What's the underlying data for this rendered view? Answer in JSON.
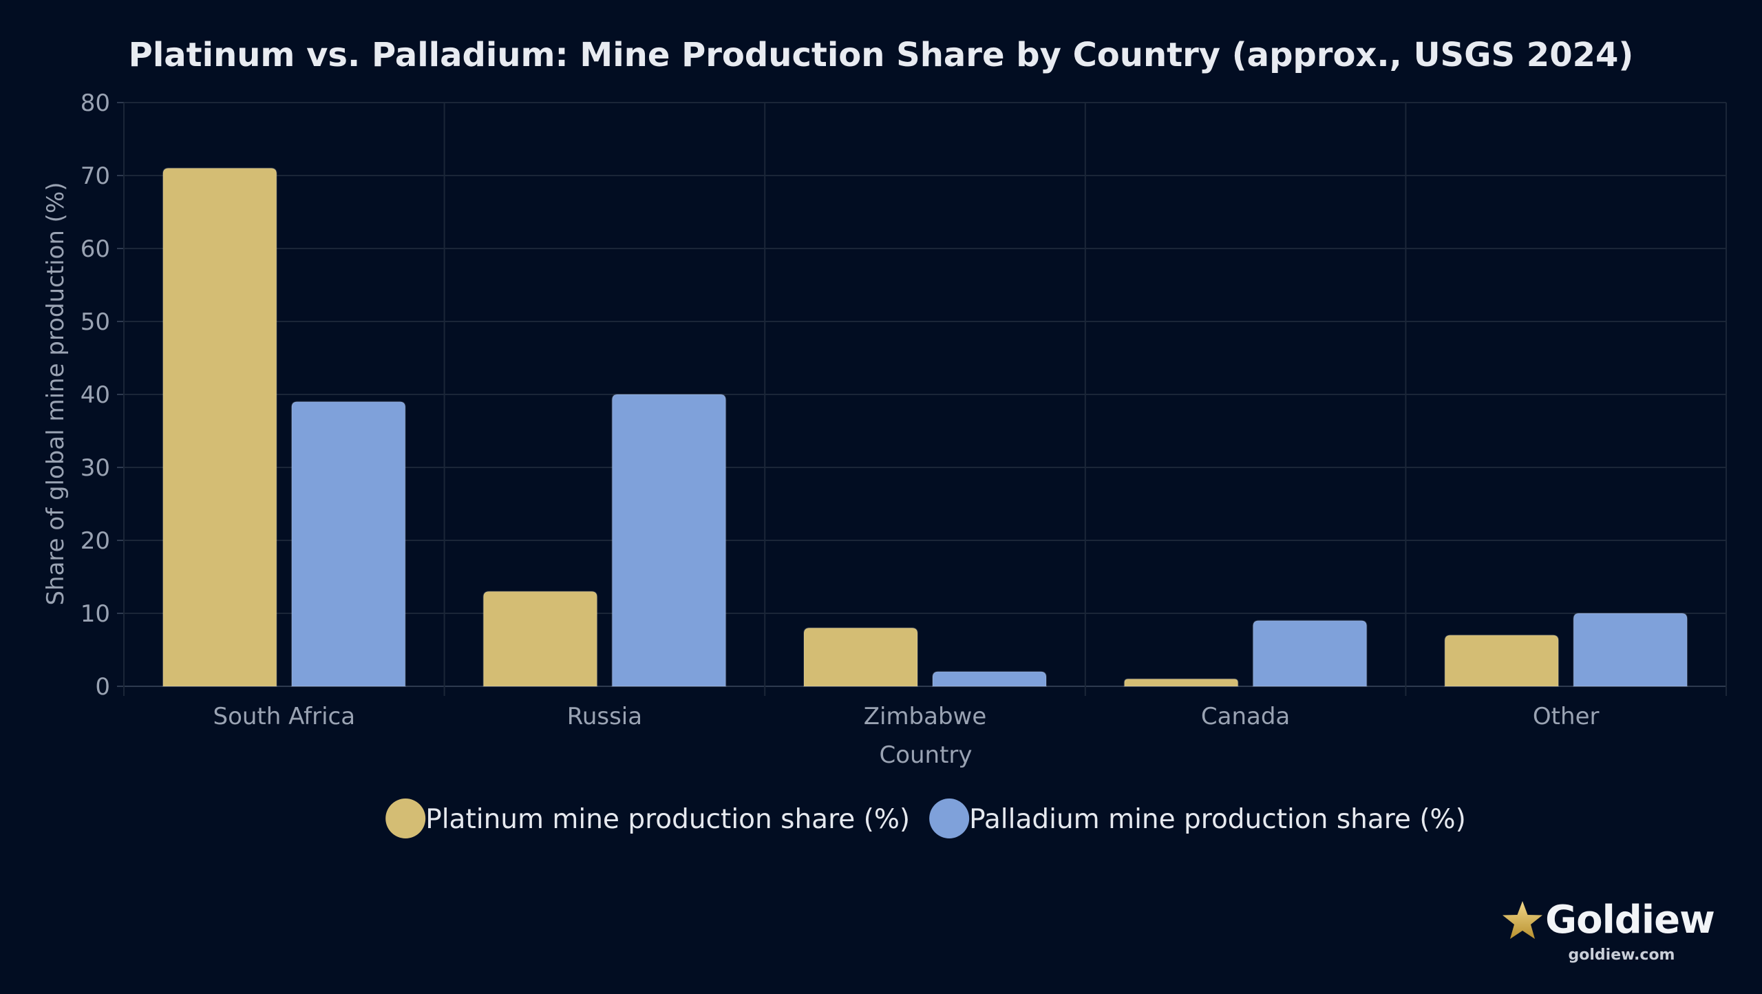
{
  "chart_data": {
    "type": "bar",
    "title": "Platinum vs. Palladium: Mine Production Share by Country (approx., USGS 2024)",
    "xlabel": "Country",
    "ylabel": "Share of global mine production (%)",
    "categories": [
      "South Africa",
      "Russia",
      "Zimbabwe",
      "Canada",
      "Other"
    ],
    "ylim": [
      0,
      80
    ],
    "yticks": [
      0,
      10,
      20,
      30,
      40,
      50,
      60,
      70,
      80
    ],
    "grid": true,
    "legend_position": "bottom",
    "series": [
      {
        "name": "Platinum mine production share (%)",
        "color": "#d4bd74",
        "values": [
          71,
          13,
          8,
          1,
          7
        ]
      },
      {
        "name": "Palladium mine production share (%)",
        "color": "#7fa1da",
        "values": [
          39,
          40,
          2,
          9,
          10
        ]
      }
    ]
  },
  "brand": {
    "name": "Goldiew",
    "url": "goldiew.com",
    "icon": "star-icon"
  }
}
